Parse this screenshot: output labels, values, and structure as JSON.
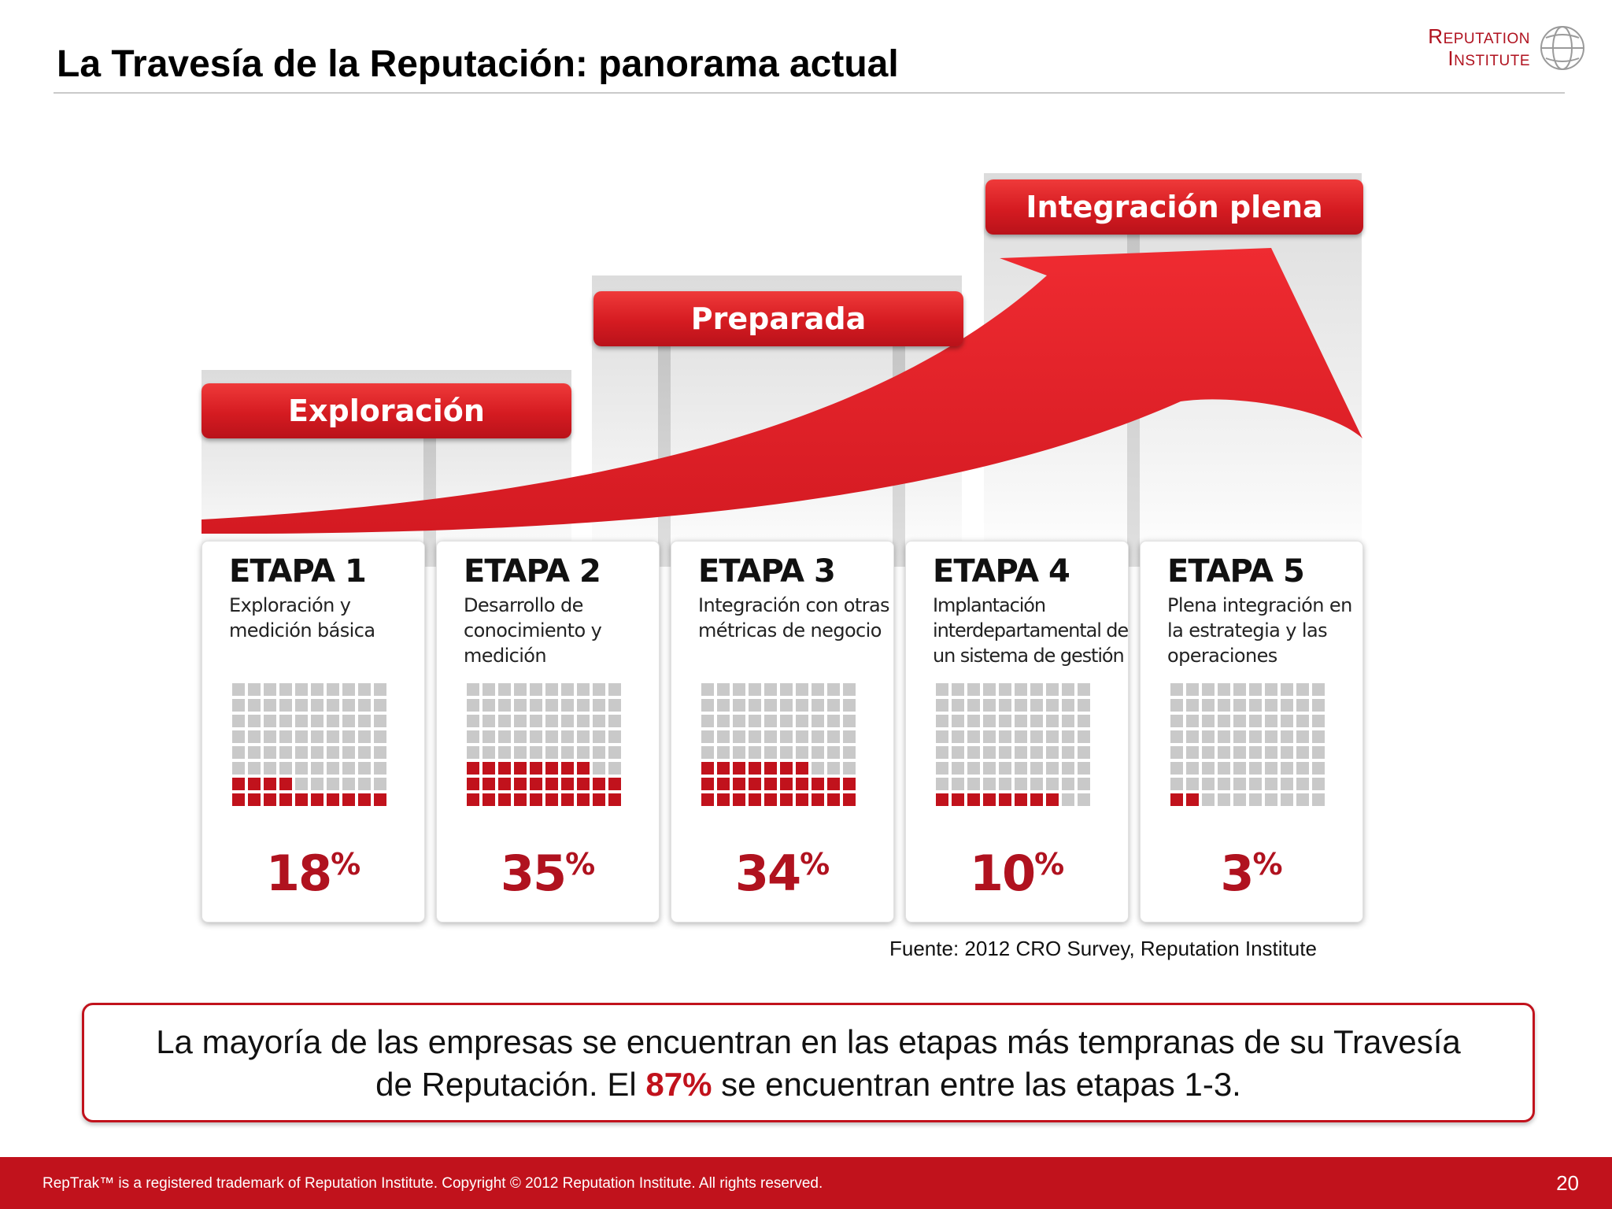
{
  "slide": {
    "title": "La Travesía de la Reputación: panorama actual",
    "logo": {
      "line1": "Reputation",
      "line2": "Institute",
      "icon": "globe-icon"
    },
    "banners": [
      {
        "label": "Exploración"
      },
      {
        "label": "Preparada"
      },
      {
        "label": "Integración plena"
      }
    ],
    "stages": [
      {
        "title": "ETAPA 1",
        "description": "Exploración y medición básica",
        "percent": 18,
        "percent_label": "18"
      },
      {
        "title": "ETAPA 2",
        "description": "Desarrollo de conocimiento y medición",
        "percent": 35,
        "percent_label": "35"
      },
      {
        "title": "ETAPA 3",
        "description": "Integración con otras métricas de negocio",
        "percent": 34,
        "percent_label": "34"
      },
      {
        "title": "ETAPA 4",
        "description": "Implantación interdepartamental de un sistema de gestión",
        "percent": 10,
        "percent_label": "10"
      },
      {
        "title": "ETAPA 5",
        "description": "Plena integración en la estrategia y las operaciones",
        "percent": 3,
        "percent_label": "3"
      }
    ],
    "percent_sign": "%",
    "source": "Fuente: 2012 CRO Survey, Reputation Institute",
    "callout": {
      "line1": "La mayoría de las empresas se encuentran en las etapas más tempranas de su Travesía",
      "line2_before": "de Reputación. El ",
      "line2_highlight": "87%",
      "line2_after": " se encuentran entre las etapas 1-3."
    },
    "footer": {
      "text": "RepTrak™ is a registered trademark of Reputation Institute. Copyright © 2012 Reputation Institute. All rights reserved.",
      "page": "20"
    },
    "colors": {
      "accent": "#c1121c",
      "inactive": "#c9c9c9"
    }
  },
  "chart_data": {
    "type": "table",
    "title": "",
    "categories": [
      "ETAPA 1",
      "ETAPA 2",
      "ETAPA 3",
      "ETAPA 4",
      "ETAPA 5"
    ],
    "values": [
      18,
      35,
      34,
      10,
      3
    ],
    "unit": "%"
  }
}
